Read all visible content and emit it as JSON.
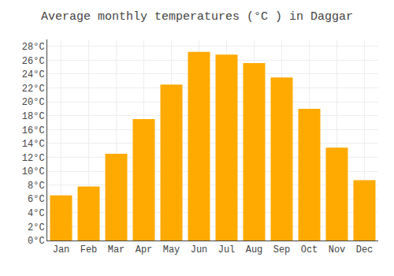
{
  "chart_data": {
    "type": "bar",
    "title": "Average monthly temperatures (°C ) in Daggar",
    "categories": [
      "Jan",
      "Feb",
      "Mar",
      "Apr",
      "May",
      "Jun",
      "Jul",
      "Aug",
      "Sep",
      "Oct",
      "Nov",
      "Dec"
    ],
    "values": [
      6.5,
      7.8,
      12.5,
      17.5,
      22.5,
      27.2,
      26.8,
      25.6,
      23.5,
      19.0,
      13.4,
      8.7
    ],
    "color": "#FFAA00",
    "ylim": [
      0,
      29
    ],
    "yticks": [
      {
        "value": 0,
        "label": "0°C"
      },
      {
        "value": 2,
        "label": "2°C"
      },
      {
        "value": 4,
        "label": "4°C"
      },
      {
        "value": 6,
        "label": "6°C"
      },
      {
        "value": 8,
        "label": "8°C"
      },
      {
        "value": 10,
        "label": "10°C"
      },
      {
        "value": 12,
        "label": "12°C"
      },
      {
        "value": 14,
        "label": "14°C"
      },
      {
        "value": 16,
        "label": "16°C"
      },
      {
        "value": 18,
        "label": "18°C"
      },
      {
        "value": 20,
        "label": "20°C"
      },
      {
        "value": 22,
        "label": "22°C"
      },
      {
        "value": 24,
        "label": "24°C"
      },
      {
        "value": 26,
        "label": "26°C"
      },
      {
        "value": 28,
        "label": "28°C"
      }
    ],
    "grid": true
  }
}
